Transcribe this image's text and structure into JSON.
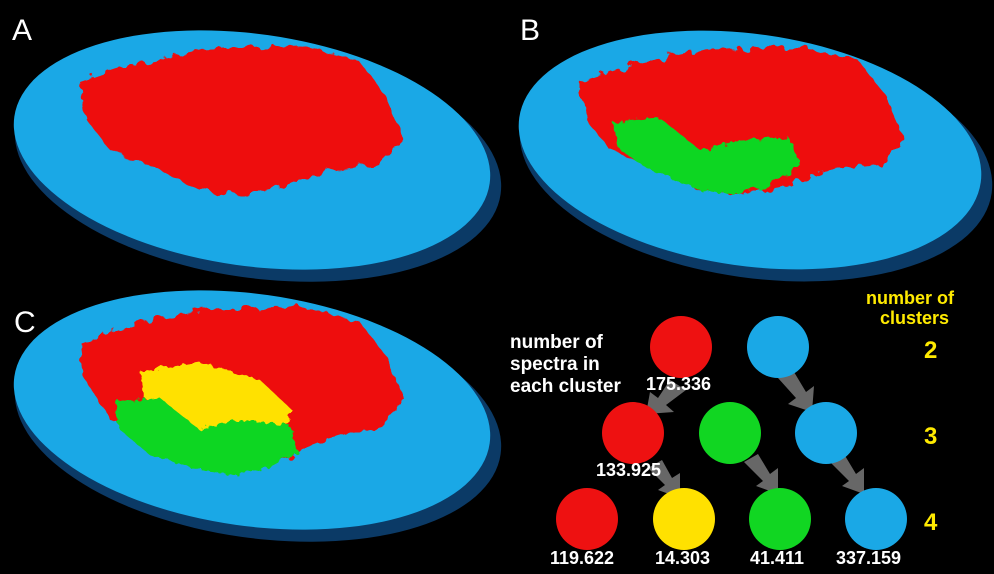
{
  "panels": {
    "a": "A",
    "b": "B",
    "c": "C"
  },
  "tree": {
    "spectra_label_1": "number of",
    "spectra_label_2": "spectra in",
    "spectra_label_3": "each cluster",
    "clusters_label_1": "number of",
    "clusters_label_2": "clusters",
    "levels": [
      "2",
      "3",
      "4"
    ],
    "counts": {
      "root_red": "175.336",
      "mid_red": "133.925",
      "leaf_red": "119.622",
      "leaf_yellow": "14.303",
      "leaf_green": "41.411",
      "leaf_blue": "337.159"
    }
  },
  "colors": {
    "blue": "#1aa8e6",
    "red": "#ee1111",
    "green": "#11d622",
    "yellow": "#ffe100",
    "label": "#ffea00"
  }
}
